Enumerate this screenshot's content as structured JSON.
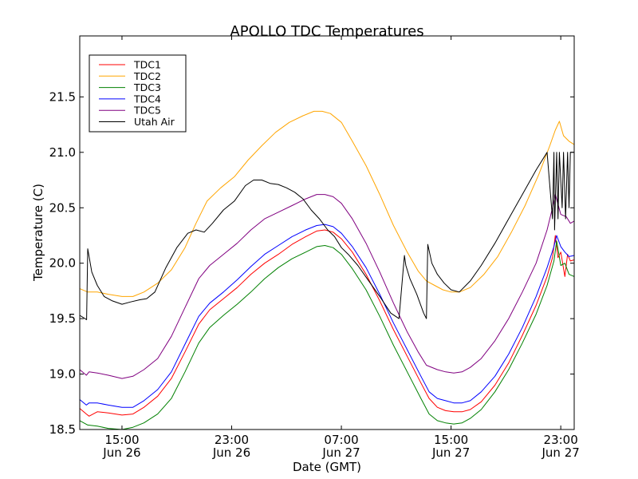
{
  "chart_data": {
    "type": "line",
    "title": "APOLLO TDC Temperatures",
    "xlabel": "Date (GMT)",
    "ylabel": "Temperature (C)",
    "x_units": "hours since 00:00 Jun 26 (GMT)",
    "xlim": [
      11.92,
      47.98
    ],
    "ylim": [
      18.5,
      22.05
    ],
    "grid": false,
    "legend_position": "top-left",
    "x_ticks": [
      {
        "value": 15,
        "label_time": "15:00",
        "label_date": "Jun 26"
      },
      {
        "value": 23,
        "label_time": "23:00",
        "label_date": "Jun 26"
      },
      {
        "value": 31,
        "label_time": "07:00",
        "label_date": "Jun 27"
      },
      {
        "value": 39,
        "label_time": "15:00",
        "label_date": "Jun 27"
      },
      {
        "value": 47,
        "label_time": "23:00",
        "label_date": "Jun 27"
      }
    ],
    "y_ticks": [
      {
        "value": 18.5,
        "label": "18.5"
      },
      {
        "value": 19.0,
        "label": "19.0"
      },
      {
        "value": 19.5,
        "label": "19.5"
      },
      {
        "value": 20.0,
        "label": "20.0"
      },
      {
        "value": 20.5,
        "label": "20.5"
      },
      {
        "value": 21.0,
        "label": "21.0"
      },
      {
        "value": 21.5,
        "label": "21.5"
      }
    ],
    "series": [
      {
        "name": "TDC1",
        "color": "#ff0000",
        "x": [
          11.92,
          12.4,
          12.6,
          13.2,
          14.0,
          15.0,
          15.8,
          16.6,
          17.6,
          18.6,
          19.6,
          20.6,
          21.4,
          22.4,
          23.4,
          24.4,
          25.4,
          26.4,
          27.4,
          28.4,
          29.2,
          29.8,
          30.4,
          31.0,
          31.8,
          32.8,
          33.8,
          34.8,
          35.8,
          36.8,
          37.4,
          38.0,
          38.6,
          39.2,
          39.8,
          40.4,
          41.2,
          42.2,
          43.2,
          44.2,
          45.2,
          46.0,
          46.4,
          46.6,
          46.8,
          47.0,
          47.3,
          47.5,
          47.7,
          47.98
        ],
        "y": [
          18.69,
          18.64,
          18.62,
          18.66,
          18.65,
          18.63,
          18.64,
          18.7,
          18.8,
          18.96,
          19.2,
          19.45,
          19.58,
          19.68,
          19.78,
          19.9,
          20.0,
          20.08,
          20.17,
          20.24,
          20.29,
          20.3,
          20.28,
          20.22,
          20.1,
          19.9,
          19.66,
          19.4,
          19.16,
          18.92,
          18.78,
          18.7,
          18.67,
          18.66,
          18.66,
          18.68,
          18.75,
          18.9,
          19.1,
          19.35,
          19.62,
          19.88,
          20.05,
          20.25,
          20.05,
          20.1,
          19.88,
          20.08,
          20.02,
          20.03
        ]
      },
      {
        "name": "TDC2",
        "color": "#ffa500",
        "x": [
          11.92,
          12.5,
          13.2,
          14.0,
          15.0,
          15.8,
          16.6,
          17.6,
          18.6,
          19.6,
          20.4,
          21.2,
          22.2,
          23.2,
          24.2,
          25.2,
          26.2,
          27.2,
          28.2,
          29.0,
          29.6,
          30.2,
          31.0,
          31.8,
          32.8,
          33.8,
          34.8,
          35.8,
          36.6,
          37.2,
          37.8,
          38.4,
          39.0,
          39.6,
          40.4,
          41.4,
          42.4,
          43.4,
          44.4,
          45.4,
          46.2,
          46.6,
          46.9,
          47.2,
          47.6,
          47.98
        ],
        "y": [
          19.77,
          19.74,
          19.74,
          19.72,
          19.7,
          19.7,
          19.74,
          19.82,
          19.94,
          20.14,
          20.36,
          20.56,
          20.68,
          20.78,
          20.93,
          21.06,
          21.18,
          21.27,
          21.33,
          21.37,
          21.37,
          21.35,
          21.27,
          21.1,
          20.88,
          20.62,
          20.34,
          20.1,
          19.93,
          19.84,
          19.8,
          19.76,
          19.74,
          19.74,
          19.78,
          19.9,
          20.06,
          20.28,
          20.52,
          20.8,
          21.06,
          21.2,
          21.28,
          21.15,
          21.1,
          21.07
        ]
      },
      {
        "name": "TDC3",
        "color": "#008000",
        "x": [
          11.92,
          12.5,
          13.2,
          14.0,
          15.0,
          15.8,
          16.6,
          17.6,
          18.6,
          19.6,
          20.6,
          21.4,
          22.4,
          23.4,
          24.4,
          25.4,
          26.4,
          27.4,
          28.4,
          29.2,
          29.8,
          30.4,
          31.0,
          31.8,
          32.8,
          33.8,
          34.8,
          35.8,
          36.8,
          37.4,
          38.0,
          38.6,
          39.2,
          39.8,
          40.4,
          41.2,
          42.2,
          43.2,
          44.2,
          45.2,
          46.0,
          46.5,
          46.7,
          47.0,
          47.3,
          47.6,
          47.98
        ],
        "y": [
          18.58,
          18.54,
          18.53,
          18.51,
          18.5,
          18.52,
          18.56,
          18.64,
          18.78,
          19.02,
          19.28,
          19.42,
          19.53,
          19.63,
          19.74,
          19.86,
          19.96,
          20.04,
          20.1,
          20.15,
          20.16,
          20.14,
          20.08,
          19.95,
          19.76,
          19.52,
          19.26,
          19.02,
          18.78,
          18.64,
          18.58,
          18.56,
          18.55,
          18.56,
          18.6,
          18.68,
          18.84,
          19.04,
          19.28,
          19.54,
          19.8,
          20.02,
          20.2,
          19.98,
          20.0,
          19.9,
          19.88
        ]
      },
      {
        "name": "TDC4",
        "color": "#0000ff",
        "x": [
          11.92,
          12.4,
          12.6,
          13.2,
          14.0,
          15.0,
          15.8,
          16.6,
          17.6,
          18.6,
          19.6,
          20.6,
          21.4,
          22.4,
          23.4,
          24.4,
          25.4,
          26.4,
          27.4,
          28.4,
          29.2,
          29.8,
          30.4,
          31.0,
          31.8,
          32.8,
          33.8,
          34.8,
          35.8,
          36.8,
          37.4,
          38.0,
          38.6,
          39.2,
          39.8,
          40.4,
          41.2,
          42.2,
          43.2,
          44.2,
          45.2,
          46.0,
          46.5,
          46.7,
          47.0,
          47.3,
          47.6,
          47.98
        ],
        "y": [
          18.77,
          18.72,
          18.74,
          18.74,
          18.72,
          18.7,
          18.7,
          18.76,
          18.86,
          19.02,
          19.27,
          19.52,
          19.64,
          19.74,
          19.85,
          19.97,
          20.08,
          20.16,
          20.24,
          20.3,
          20.34,
          20.35,
          20.33,
          20.27,
          20.15,
          19.96,
          19.72,
          19.46,
          19.22,
          18.98,
          18.84,
          18.78,
          18.76,
          18.74,
          18.74,
          18.76,
          18.84,
          18.98,
          19.18,
          19.42,
          19.7,
          19.96,
          20.15,
          20.25,
          20.15,
          20.1,
          20.06,
          20.07
        ]
      },
      {
        "name": "TDC5",
        "color": "#800080",
        "x": [
          11.92,
          12.4,
          12.6,
          13.2,
          14.0,
          15.0,
          15.8,
          16.6,
          17.6,
          18.6,
          19.6,
          20.6,
          21.4,
          22.4,
          23.4,
          24.4,
          25.4,
          26.4,
          27.4,
          28.4,
          29.2,
          29.8,
          30.4,
          31.0,
          31.8,
          32.8,
          33.8,
          34.8,
          35.8,
          36.6,
          37.2,
          38.0,
          38.6,
          39.2,
          39.8,
          40.4,
          41.2,
          42.2,
          43.2,
          44.2,
          45.2,
          46.0,
          46.4,
          46.6,
          47.0,
          47.4,
          47.7,
          47.98
        ],
        "y": [
          19.04,
          18.99,
          19.02,
          19.01,
          18.99,
          18.96,
          18.98,
          19.04,
          19.14,
          19.34,
          19.6,
          19.86,
          19.98,
          20.08,
          20.18,
          20.3,
          20.4,
          20.46,
          20.52,
          20.58,
          20.62,
          20.62,
          20.6,
          20.54,
          20.4,
          20.18,
          19.92,
          19.64,
          19.38,
          19.2,
          19.08,
          19.04,
          19.02,
          19.01,
          19.02,
          19.06,
          19.14,
          19.3,
          19.5,
          19.74,
          20.0,
          20.3,
          20.5,
          20.62,
          20.44,
          20.42,
          20.36,
          20.38
        ]
      },
      {
        "name": "Utah Air",
        "color": "#000000",
        "x": [
          11.92,
          12.3,
          12.42,
          12.5,
          12.8,
          13.2,
          13.7,
          14.3,
          15.0,
          15.6,
          16.3,
          16.8,
          17.4,
          18.2,
          19.0,
          19.8,
          20.4,
          21.0,
          21.6,
          22.4,
          23.2,
          24.0,
          24.6,
          25.2,
          25.8,
          26.4,
          27.0,
          27.6,
          28.2,
          28.8,
          29.4,
          30.0,
          30.5,
          31.0,
          31.5,
          32.2,
          33.0,
          33.8,
          34.6,
          35.2,
          35.6,
          35.7,
          36.0,
          36.5,
          37.0,
          37.2,
          37.3,
          37.6,
          38.0,
          38.5,
          39.0,
          39.6,
          40.4,
          41.2,
          42.2,
          43.2,
          44.2,
          45.2,
          46.0,
          46.4,
          46.5,
          46.55,
          46.7,
          46.8,
          46.9,
          47.1,
          47.2,
          47.35,
          47.5,
          47.6,
          47.7,
          47.98
        ],
        "y": [
          19.53,
          19.5,
          19.49,
          20.13,
          19.92,
          19.8,
          19.7,
          19.66,
          19.63,
          19.65,
          19.67,
          19.68,
          19.74,
          19.96,
          20.14,
          20.27,
          20.3,
          20.28,
          20.36,
          20.48,
          20.56,
          20.7,
          20.75,
          20.75,
          20.72,
          20.71,
          20.68,
          20.64,
          20.58,
          20.48,
          20.4,
          20.3,
          20.24,
          20.14,
          20.08,
          19.98,
          19.84,
          19.7,
          19.55,
          19.5,
          20.07,
          19.98,
          19.86,
          19.72,
          19.55,
          19.5,
          20.17,
          20.0,
          19.9,
          19.82,
          19.76,
          19.74,
          19.84,
          19.98,
          20.18,
          20.4,
          20.62,
          20.84,
          21.0,
          20.4,
          21.0,
          20.3,
          21.0,
          20.4,
          21.0,
          20.5,
          21.0,
          20.4,
          21.0,
          20.5,
          21.0,
          21.0
        ]
      }
    ]
  }
}
